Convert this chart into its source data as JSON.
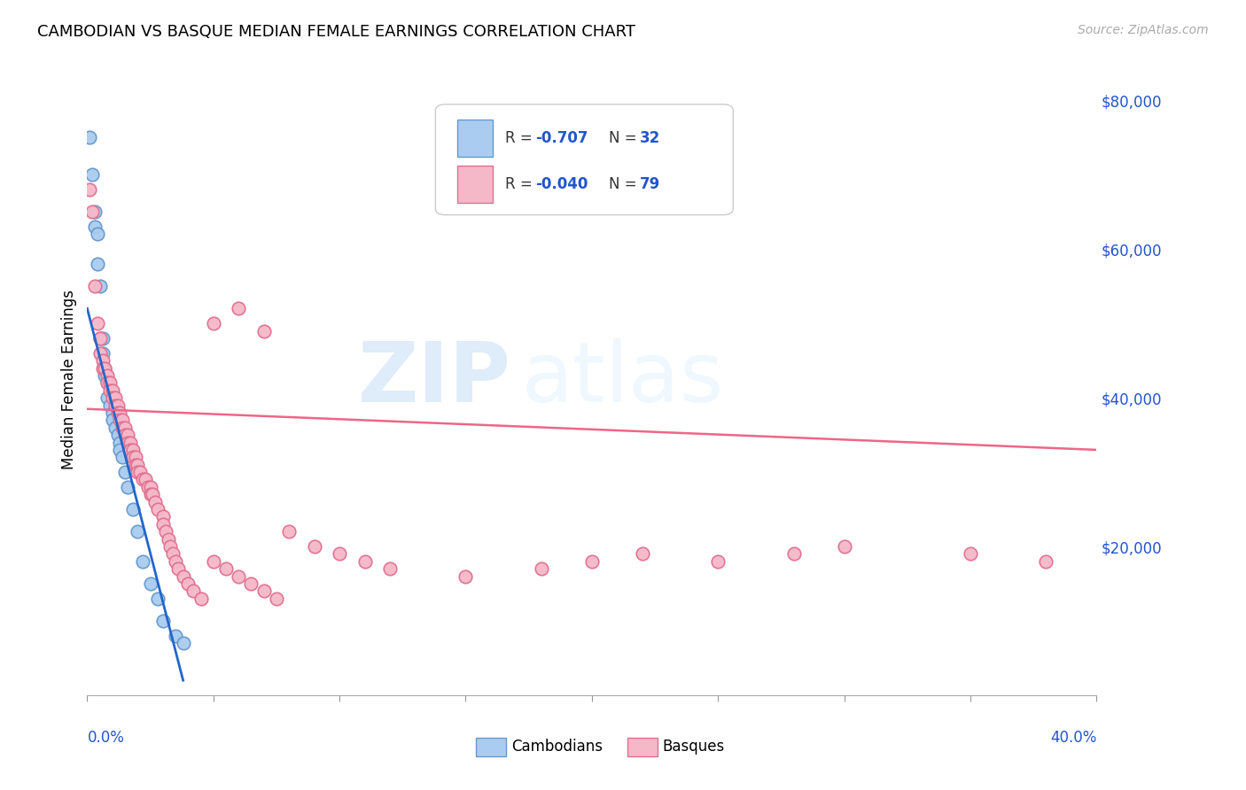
{
  "title": "CAMBODIAN VS BASQUE MEDIAN FEMALE EARNINGS CORRELATION CHART",
  "source": "Source: ZipAtlas.com",
  "ylabel": "Median Female Earnings",
  "y_ticks": [
    0,
    20000,
    40000,
    60000,
    80000
  ],
  "y_tick_labels": [
    "",
    "$20,000",
    "$40,000",
    "$60,000",
    "$80,000"
  ],
  "x_range": [
    0.0,
    0.4
  ],
  "y_range": [
    0,
    85000
  ],
  "cambodian_color": "#aaccf0",
  "cambodian_edge_color": "#6699cc",
  "basque_color": "#f5b8c8",
  "basque_edge_color": "#e07090",
  "blue_line_color": "#2266cc",
  "pink_line_color": "#ee6688",
  "watermark_zip": "ZIP",
  "watermark_atlas": "atlas",
  "cambodian_x": [
    0.001,
    0.002,
    0.003,
    0.003,
    0.004,
    0.004,
    0.005,
    0.005,
    0.006,
    0.006,
    0.007,
    0.007,
    0.008,
    0.008,
    0.009,
    0.01,
    0.01,
    0.011,
    0.012,
    0.013,
    0.013,
    0.014,
    0.015,
    0.016,
    0.018,
    0.02,
    0.022,
    0.025,
    0.028,
    0.03,
    0.035,
    0.038
  ],
  "cambodian_y": [
    75000,
    70000,
    65000,
    63000,
    62000,
    58000,
    55000,
    48000,
    48000,
    46000,
    44000,
    43000,
    42000,
    40000,
    39000,
    38000,
    37000,
    36000,
    35000,
    34000,
    33000,
    32000,
    30000,
    28000,
    25000,
    22000,
    18000,
    15000,
    13000,
    10000,
    8000,
    7000
  ],
  "basque_x": [
    0.001,
    0.002,
    0.003,
    0.004,
    0.005,
    0.005,
    0.006,
    0.006,
    0.007,
    0.008,
    0.008,
    0.009,
    0.009,
    0.01,
    0.01,
    0.011,
    0.011,
    0.012,
    0.012,
    0.013,
    0.013,
    0.014,
    0.014,
    0.015,
    0.015,
    0.016,
    0.016,
    0.017,
    0.017,
    0.018,
    0.018,
    0.019,
    0.019,
    0.02,
    0.02,
    0.021,
    0.022,
    0.023,
    0.024,
    0.025,
    0.025,
    0.026,
    0.027,
    0.028,
    0.03,
    0.03,
    0.031,
    0.032,
    0.033,
    0.034,
    0.035,
    0.036,
    0.038,
    0.04,
    0.042,
    0.045,
    0.05,
    0.055,
    0.06,
    0.065,
    0.07,
    0.075,
    0.08,
    0.09,
    0.1,
    0.11,
    0.12,
    0.15,
    0.18,
    0.2,
    0.22,
    0.25,
    0.28,
    0.3,
    0.35,
    0.38,
    0.05,
    0.06,
    0.07
  ],
  "basque_y": [
    68000,
    65000,
    55000,
    50000,
    48000,
    46000,
    45000,
    44000,
    44000,
    43000,
    42000,
    42000,
    41000,
    41000,
    40000,
    40000,
    39000,
    39000,
    38000,
    38000,
    37000,
    37000,
    36000,
    36000,
    35000,
    35000,
    34000,
    34000,
    33000,
    33000,
    32000,
    32000,
    31000,
    31000,
    30000,
    30000,
    29000,
    29000,
    28000,
    28000,
    27000,
    27000,
    26000,
    25000,
    24000,
    23000,
    22000,
    21000,
    20000,
    19000,
    18000,
    17000,
    16000,
    15000,
    14000,
    13000,
    18000,
    17000,
    16000,
    15000,
    14000,
    13000,
    22000,
    20000,
    19000,
    18000,
    17000,
    16000,
    17000,
    18000,
    19000,
    18000,
    19000,
    20000,
    19000,
    18000,
    50000,
    52000,
    49000
  ],
  "blue_line_x": [
    0.0,
    0.038
  ],
  "blue_line_y": [
    52000,
    2000
  ],
  "pink_line_x": [
    0.0,
    0.4
  ],
  "pink_line_y": [
    38500,
    33000
  ],
  "legend_items": [
    {
      "color": "#aaccf0",
      "edge": "#6699cc",
      "r_label": "R = ",
      "r_val": "-0.707",
      "n_label": "N = ",
      "n_val": "32"
    },
    {
      "color": "#f5b8c8",
      "edge": "#e07090",
      "r_label": "R = ",
      "r_val": "-0.040",
      "n_label": "N = ",
      "n_val": "79"
    }
  ]
}
